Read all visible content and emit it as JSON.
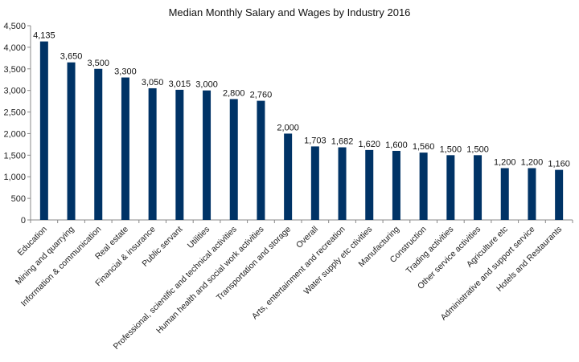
{
  "chart_data": {
    "type": "bar",
    "title": "Median Monthly Salary and Wages by Industry 2016",
    "xlabel": "",
    "ylabel": "",
    "ylim": [
      0,
      4500
    ],
    "yticks": [
      0,
      500,
      1000,
      1500,
      2000,
      2500,
      3000,
      3500,
      4000,
      4500
    ],
    "ytick_labels": [
      "0",
      "500",
      "1,000",
      "1,500",
      "2,000",
      "2,500",
      "3,000",
      "3,500",
      "4,000",
      "4,500"
    ],
    "grid": false,
    "bar_color": "#003366",
    "categories": [
      "Education",
      "Mining and quarrying",
      "Information & communication",
      "Real estate",
      "Financial & insurance",
      "Public servant",
      "Utilities",
      "Professional, scientific and technical activities",
      "Human health and social work activities",
      "Transportation and storage",
      "Overall",
      "Arts, entertainment and recreation",
      "Water supply etc ctivities",
      "Manufacturing",
      "Construction",
      "Trading activities",
      "Other service activities",
      "Agriculture etc",
      "Administrative and support service",
      "Hotels and Restaurants"
    ],
    "values": [
      4135,
      3650,
      3500,
      3300,
      3050,
      3015,
      3000,
      2800,
      2760,
      2000,
      1703,
      1682,
      1620,
      1600,
      1560,
      1500,
      1500,
      1200,
      1200,
      1160
    ],
    "value_labels": [
      "4,135",
      "3,650",
      "3,500",
      "3,300",
      "3,050",
      "3,015",
      "3,000",
      "2,800",
      "2,760",
      "2,000",
      "1,703",
      "1,682",
      "1,620",
      "1,600",
      "1,560",
      "1,500",
      "1,500",
      "1,200",
      "1,200",
      "1,160"
    ]
  }
}
